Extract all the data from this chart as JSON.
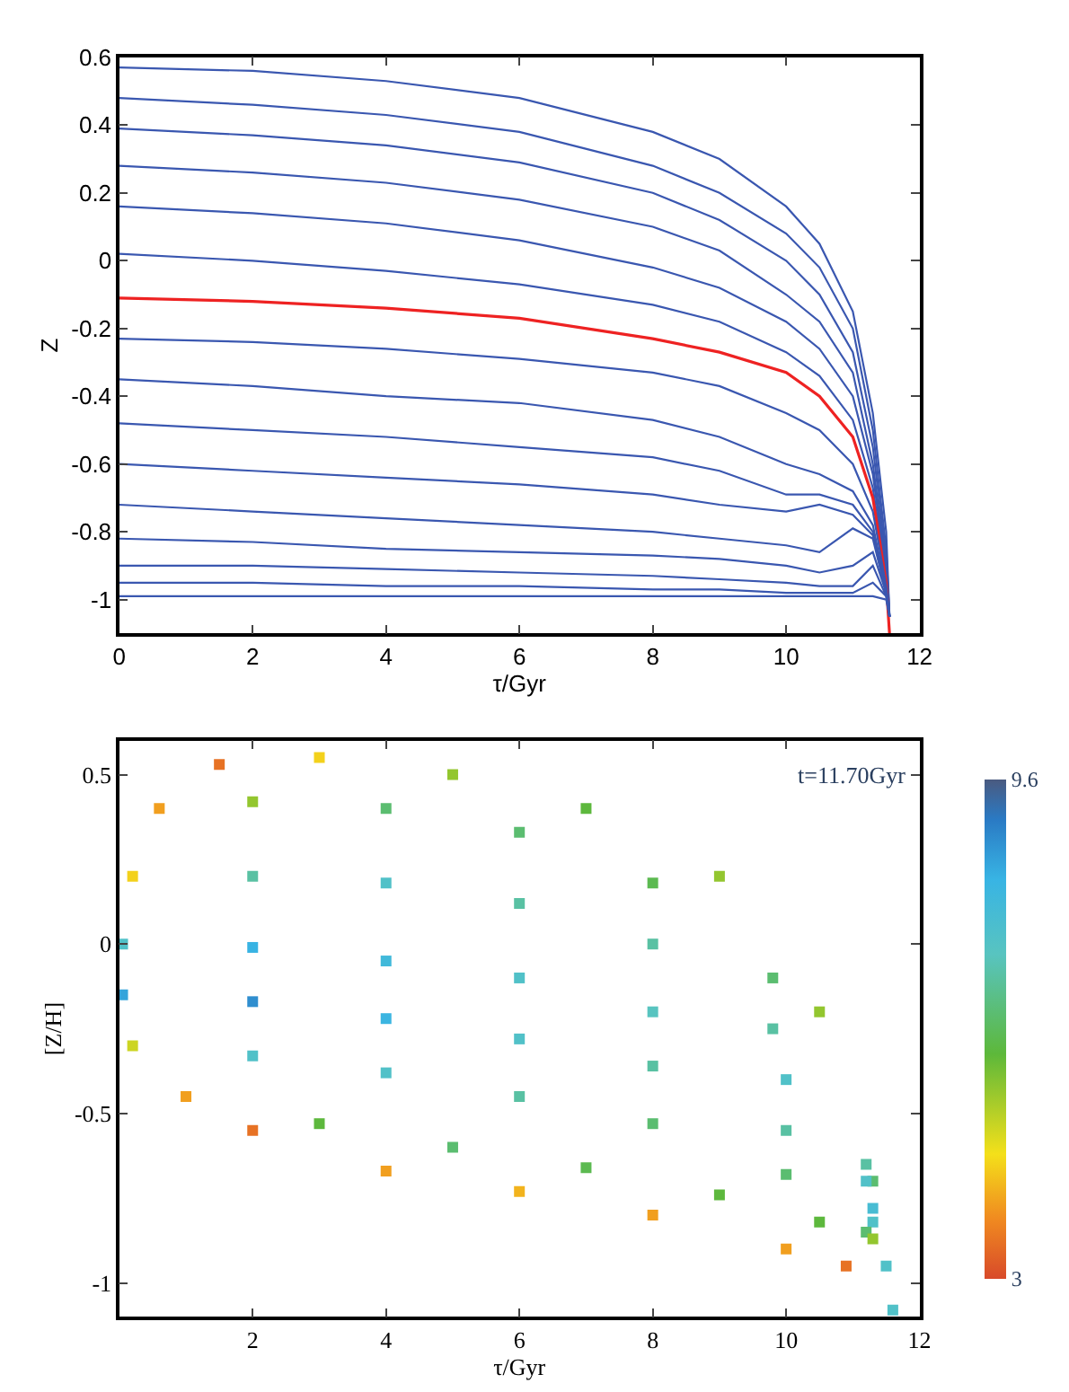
{
  "chart_data": [
    {
      "type": "line",
      "xlabel": "τ/Gyr",
      "ylabel": "Z",
      "xlim": [
        0,
        12
      ],
      "ylim": [
        -1.1,
        0.6
      ],
      "xticks": [
        0,
        2,
        4,
        6,
        8,
        10,
        12
      ],
      "yticks": [
        -1,
        -0.8,
        -0.6,
        -0.4,
        -0.2,
        0,
        0.2,
        0.4,
        0.6
      ],
      "marker": "none",
      "line_style": "solid",
      "x": [
        0,
        2,
        4,
        6,
        8,
        9,
        10,
        10.5,
        11,
        11.3,
        11.5,
        11.55
      ],
      "series": [
        {
          "color": "#3a57b0",
          "values": [
            0.57,
            0.56,
            0.53,
            0.48,
            0.38,
            0.3,
            0.16,
            0.05,
            -0.15,
            -0.45,
            -0.8,
            -1.05
          ]
        },
        {
          "color": "#3a57b0",
          "values": [
            0.48,
            0.46,
            0.43,
            0.38,
            0.28,
            0.2,
            0.08,
            -0.02,
            -0.2,
            -0.5,
            -0.85,
            -1.05
          ]
        },
        {
          "color": "#3a57b0",
          "values": [
            0.39,
            0.37,
            0.34,
            0.29,
            0.2,
            0.12,
            0.0,
            -0.1,
            -0.27,
            -0.55,
            -0.88,
            -1.05
          ]
        },
        {
          "color": "#3a57b0",
          "values": [
            0.28,
            0.26,
            0.23,
            0.18,
            0.1,
            0.03,
            -0.1,
            -0.18,
            -0.33,
            -0.6,
            -0.9,
            -1.05
          ]
        },
        {
          "color": "#3a57b0",
          "values": [
            0.16,
            0.14,
            0.11,
            0.06,
            -0.02,
            -0.08,
            -0.18,
            -0.26,
            -0.4,
            -0.63,
            -0.92,
            -1.05
          ]
        },
        {
          "color": "#3a57b0",
          "values": [
            0.02,
            0.0,
            -0.03,
            -0.07,
            -0.13,
            -0.18,
            -0.27,
            -0.34,
            -0.47,
            -0.67,
            -0.93,
            -1.05
          ]
        },
        {
          "color": "#ee2222",
          "values": [
            -0.11,
            -0.12,
            -0.14,
            -0.17,
            -0.23,
            -0.27,
            -0.33,
            -0.4,
            -0.52,
            -0.7,
            -0.95,
            -1.1
          ]
        },
        {
          "color": "#3a57b0",
          "values": [
            -0.23,
            -0.24,
            -0.26,
            -0.29,
            -0.33,
            -0.37,
            -0.45,
            -0.5,
            -0.6,
            -0.74,
            -0.96,
            -1.05
          ]
        },
        {
          "color": "#3a57b0",
          "values": [
            -0.35,
            -0.37,
            -0.4,
            -0.42,
            -0.47,
            -0.52,
            -0.6,
            -0.63,
            -0.68,
            -0.78,
            -0.97,
            -1.05
          ]
        },
        {
          "color": "#3a57b0",
          "values": [
            -0.48,
            -0.5,
            -0.52,
            -0.55,
            -0.58,
            -0.62,
            -0.69,
            -0.69,
            -0.72,
            -0.8,
            -0.97,
            -1.05
          ]
        },
        {
          "color": "#3a57b0",
          "values": [
            -0.6,
            -0.62,
            -0.64,
            -0.66,
            -0.69,
            -0.72,
            -0.74,
            -0.72,
            -0.75,
            -0.81,
            -0.98,
            -1.05
          ]
        },
        {
          "color": "#3a57b0",
          "values": [
            -0.72,
            -0.74,
            -0.76,
            -0.78,
            -0.8,
            -0.82,
            -0.84,
            -0.86,
            -0.79,
            -0.82,
            -0.98,
            -1.05
          ]
        },
        {
          "color": "#3a57b0",
          "values": [
            -0.82,
            -0.83,
            -0.85,
            -0.86,
            -0.87,
            -0.88,
            -0.9,
            -0.92,
            -0.9,
            -0.86,
            -0.98,
            -1.05
          ]
        },
        {
          "color": "#3a57b0",
          "values": [
            -0.9,
            -0.9,
            -0.91,
            -0.92,
            -0.93,
            -0.94,
            -0.95,
            -0.96,
            -0.96,
            -0.9,
            -0.99,
            -1.05
          ]
        },
        {
          "color": "#3a57b0",
          "values": [
            -0.95,
            -0.95,
            -0.96,
            -0.96,
            -0.97,
            -0.97,
            -0.98,
            -0.98,
            -0.98,
            -0.95,
            -0.99,
            -1.05
          ]
        },
        {
          "color": "#3a57b0",
          "values": [
            -0.99,
            -0.99,
            -0.99,
            -0.99,
            -0.99,
            -0.99,
            -0.99,
            -0.99,
            -0.99,
            -0.99,
            -1.0,
            -1.05
          ]
        }
      ]
    },
    {
      "type": "scatter",
      "xlabel": "τ/Gyr",
      "ylabel": "[Z/H]",
      "xlim": [
        0,
        12
      ],
      "ylim": [
        -1.1,
        0.6
      ],
      "xticks": [
        2,
        4,
        6,
        8,
        10,
        12
      ],
      "yticks": [
        -1,
        -0.5,
        0,
        0.5
      ],
      "marker": "square",
      "clim": [
        3,
        9.6
      ],
      "cticks": [
        3,
        9.6
      ],
      "annotations": [
        "t=11.70Gyr"
      ],
      "x": [
        1.5,
        3,
        5,
        7,
        9,
        10.5,
        11.3,
        0.6,
        2,
        4,
        6,
        8,
        9.8,
        11.2,
        0.2,
        2,
        4,
        6,
        8,
        9.8,
        11.2,
        0.05,
        2,
        4,
        6,
        8,
        10,
        11.3,
        0.05,
        2,
        4,
        6,
        8,
        10,
        11.3,
        0.2,
        2,
        4,
        6,
        8,
        10,
        11.2,
        1,
        3,
        5,
        7,
        9,
        10.5,
        11.3,
        2,
        4,
        6,
        8,
        10,
        10.9,
        11.5,
        11.6
      ],
      "values": [
        0.53,
        0.55,
        0.5,
        0.4,
        0.2,
        -0.2,
        -0.7,
        0.4,
        0.42,
        0.4,
        0.33,
        0.18,
        -0.1,
        -0.65,
        0.2,
        0.2,
        0.18,
        0.12,
        0.0,
        -0.25,
        -0.7,
        0.0,
        -0.01,
        -0.05,
        -0.1,
        -0.2,
        -0.4,
        -0.78,
        -0.15,
        -0.17,
        -0.22,
        -0.28,
        -0.36,
        -0.55,
        -0.82,
        -0.3,
        -0.33,
        -0.38,
        -0.45,
        -0.53,
        -0.68,
        -0.85,
        -0.45,
        -0.53,
        -0.6,
        -0.66,
        -0.74,
        -0.82,
        -0.87,
        -0.55,
        -0.67,
        -0.73,
        -0.8,
        -0.9,
        -0.95,
        -0.95,
        -1.08
      ],
      "cvalues": [
        3.5,
        4.5,
        5.5,
        6,
        5.5,
        5.5,
        6.5,
        4,
        5.5,
        6.5,
        6.5,
        6.2,
        6.5,
        7,
        4.5,
        7,
        7.5,
        7,
        7,
        7,
        7.5,
        7.5,
        8.3,
        8,
        7.5,
        7.3,
        7.5,
        7.8,
        8.5,
        8.8,
        8.2,
        7.5,
        7,
        7,
        7.5,
        5,
        7.5,
        7.5,
        7,
        6.5,
        6.5,
        6.5,
        4,
        6,
        6.5,
        6.2,
        6,
        6,
        5.5,
        3.5,
        4,
        4.2,
        4,
        4,
        3.5,
        7.5,
        7.5
      ]
    }
  ]
}
